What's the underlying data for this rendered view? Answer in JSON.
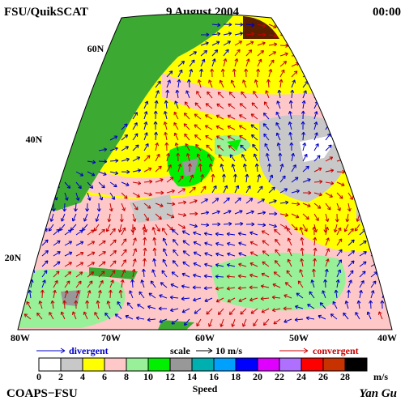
{
  "header": {
    "left": "FSU/QuikSCAT",
    "center": "9 August 2004",
    "right": "00:00"
  },
  "map": {
    "lat_labels": [
      "60N",
      "40N",
      "20N"
    ],
    "lon_labels": [
      "80W",
      "70W",
      "60W",
      "50W",
      "40W"
    ]
  },
  "legend": {
    "divergent": "divergent",
    "scale": "scale",
    "scale_value": "10 m/s",
    "convergent": "convergent"
  },
  "colorbar": {
    "ticks": [
      0,
      2,
      4,
      6,
      8,
      10,
      12,
      14,
      16,
      18,
      20,
      22,
      24,
      26,
      28
    ],
    "colors": [
      "#ffffff",
      "#c8c8c8",
      "#ffff00",
      "#ffc8c8",
      "#98f098",
      "#00f000",
      "#989898",
      "#00b0b0",
      "#00a0ff",
      "#0000ff",
      "#e000ff",
      "#b070ff",
      "#ff0000",
      "#c83200",
      "#000000"
    ],
    "unit": "m/s",
    "title": "Speed"
  },
  "footer": {
    "left": "COAPS−FSU",
    "right": "Yan Gu"
  }
}
